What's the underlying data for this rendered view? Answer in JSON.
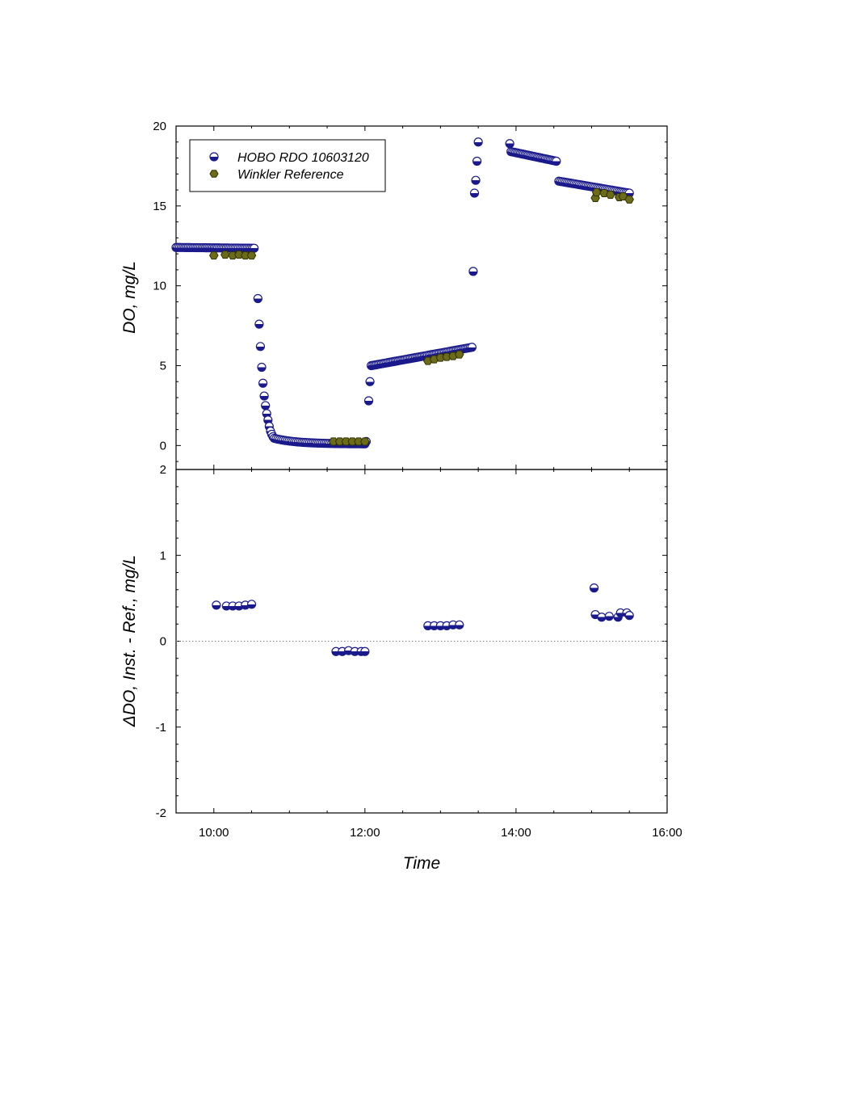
{
  "chart_data": {
    "type": "scatter",
    "xlabel": "Time",
    "x_ticks": [
      "10:00",
      "12:00",
      "14:00",
      "16:00"
    ],
    "xlim": [
      "09:30",
      "16:00"
    ],
    "top_panel": {
      "ylabel": "DO, mg/L",
      "ylim": [
        -1.5,
        20
      ],
      "y_ticks": [
        0,
        5,
        10,
        15,
        20
      ],
      "legend": {
        "placement": "top-left",
        "entries": [
          "HOBO RDO 10603120",
          "Winkler Reference"
        ]
      },
      "series": [
        {
          "name": "HOBO RDO 10603120",
          "marker": "half-filled-circle",
          "color": "#1a1a8c",
          "segments": [
            {
              "type": "linear",
              "x_start": "09:30",
              "x_end": "10:32",
              "y_start": 12.4,
              "y_end": 12.35,
              "count": 46
            },
            {
              "type": "points",
              "points": [
                [
                  "10:35",
                  9.2
                ],
                [
                  "10:36",
                  7.6
                ],
                [
                  "10:37",
                  6.2
                ],
                [
                  "10:38",
                  4.9
                ],
                [
                  "10:39",
                  3.9
                ],
                [
                  "10:40",
                  3.1
                ],
                [
                  "10:41",
                  2.5
                ],
                [
                  "10:42",
                  2.0
                ],
                [
                  "10:43",
                  1.6
                ],
                [
                  "10:44",
                  1.2
                ],
                [
                  "10:45",
                  0.9
                ],
                [
                  "10:46",
                  0.7
                ],
                [
                  "10:47",
                  0.55
                ]
              ]
            },
            {
              "type": "decay",
              "x_start": "10:48",
              "x_end": "12:00",
              "y_start": 0.45,
              "y_end": 0.1,
              "count": 50
            },
            {
              "type": "points",
              "points": [
                [
                  "12:01",
                  0.25
                ],
                [
                  "12:03",
                  2.8
                ],
                [
                  "12:04",
                  4.0
                ]
              ]
            },
            {
              "type": "linear",
              "x_start": "12:05",
              "x_end": "13:25",
              "y_start": 5.0,
              "y_end": 6.15,
              "count": 60
            },
            {
              "type": "points",
              "points": [
                [
                  "13:26",
                  10.9
                ],
                [
                  "13:27",
                  15.8
                ],
                [
                  "13:28",
                  16.6
                ],
                [
                  "13:29",
                  17.8
                ],
                [
                  "13:30",
                  19.0
                ]
              ]
            },
            {
              "type": "points",
              "points": [
                [
                  "13:55",
                  18.9
                ]
              ]
            },
            {
              "type": "linear",
              "x_start": "13:56",
              "x_end": "14:32",
              "y_start": 18.4,
              "y_end": 17.8,
              "count": 30
            },
            {
              "type": "linear",
              "x_start": "14:34",
              "x_end": "15:30",
              "y_start": 16.55,
              "y_end": 15.8,
              "count": 42
            }
          ]
        },
        {
          "name": "Winkler Reference",
          "marker": "hexagon",
          "color": "#6b6b1a",
          "points": [
            [
              "10:00",
              11.9
            ],
            [
              "10:09",
              11.95
            ],
            [
              "10:15",
              11.9
            ],
            [
              "10:20",
              11.95
            ],
            [
              "10:25",
              11.9
            ],
            [
              "10:30",
              11.9
            ],
            [
              "11:35",
              0.25
            ],
            [
              "11:40",
              0.25
            ],
            [
              "11:45",
              0.25
            ],
            [
              "11:50",
              0.25
            ],
            [
              "11:55",
              0.25
            ],
            [
              "12:00",
              0.25
            ],
            [
              "12:50",
              5.3
            ],
            [
              "12:55",
              5.4
            ],
            [
              "13:00",
              5.5
            ],
            [
              "13:05",
              5.55
            ],
            [
              "13:10",
              5.6
            ],
            [
              "13:15",
              5.7
            ],
            [
              "15:03",
              15.5
            ],
            [
              "15:04",
              15.85
            ],
            [
              "15:10",
              15.8
            ],
            [
              "15:15",
              15.7
            ],
            [
              "15:22",
              15.55
            ],
            [
              "15:25",
              15.6
            ],
            [
              "15:30",
              15.4
            ]
          ]
        }
      ]
    },
    "bottom_panel": {
      "ylabel": "ΔDO, Inst. - Ref., mg/L",
      "ylim": [
        -2,
        2
      ],
      "y_ticks": [
        -2,
        -1,
        0,
        1,
        2
      ],
      "zero_line": "dotted",
      "series": [
        {
          "name": "HOBO RDO 10603120",
          "marker": "half-filled-circle",
          "color": "#1a1a8c",
          "points": [
            [
              "10:02",
              0.42
            ],
            [
              "10:10",
              0.41
            ],
            [
              "10:15",
              0.41
            ],
            [
              "10:20",
              0.41
            ],
            [
              "10:25",
              0.42
            ],
            [
              "10:30",
              0.43
            ],
            [
              "11:37",
              -0.12
            ],
            [
              "11:42",
              -0.12
            ],
            [
              "11:47",
              -0.11
            ],
            [
              "11:52",
              -0.12
            ],
            [
              "11:57",
              -0.12
            ],
            [
              "12:00",
              -0.12
            ],
            [
              "12:50",
              0.18
            ],
            [
              "12:55",
              0.18
            ],
            [
              "13:00",
              0.18
            ],
            [
              "13:05",
              0.18
            ],
            [
              "13:10",
              0.19
            ],
            [
              "13:15",
              0.19
            ],
            [
              "15:02",
              0.62
            ],
            [
              "15:03",
              0.31
            ],
            [
              "15:08",
              0.28
            ],
            [
              "15:14",
              0.29
            ],
            [
              "15:21",
              0.28
            ],
            [
              "15:23",
              0.33
            ],
            [
              "15:28",
              0.33
            ],
            [
              "15:30",
              0.3
            ]
          ]
        }
      ]
    }
  }
}
